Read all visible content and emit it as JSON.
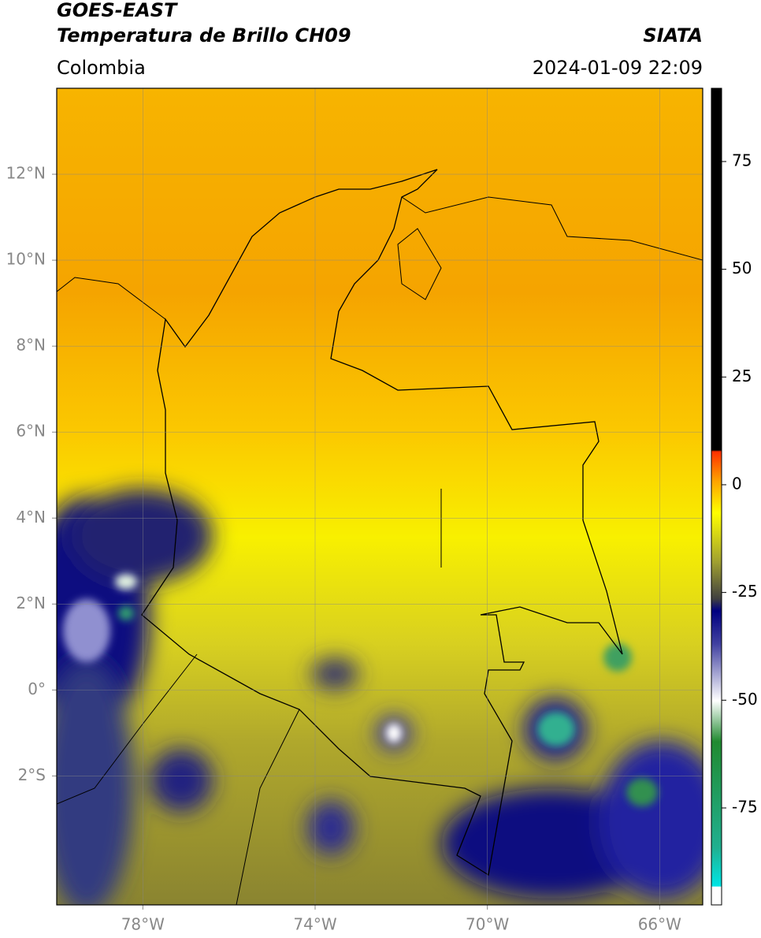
{
  "header": {
    "title": "GOES-EAST",
    "subtitle": "Temperatura de Brillo CH09",
    "region": "Colombia",
    "source": "SIATA",
    "datetime": "2024-01-09 22:09"
  },
  "map": {
    "lonlim": [
      -80,
      -65
    ],
    "latlim": [
      -5,
      14
    ],
    "lon_ticks": [
      {
        "value": -78,
        "label": "78°W"
      },
      {
        "value": -74,
        "label": "74°W"
      },
      {
        "value": -70,
        "label": "70°W"
      },
      {
        "value": -66,
        "label": "66°W"
      }
    ],
    "lat_ticks": [
      {
        "value": 12,
        "label": "12°N"
      },
      {
        "value": 10,
        "label": "10°N"
      },
      {
        "value": 8,
        "label": "8°N"
      },
      {
        "value": 6,
        "label": "6°N"
      },
      {
        "value": 4,
        "label": "4°N"
      },
      {
        "value": 2,
        "label": "2°N"
      },
      {
        "value": 0,
        "label": "0°"
      },
      {
        "value": -2,
        "label": "2°S"
      }
    ]
  },
  "colorbar": {
    "lim": [
      -97.5,
      92
    ],
    "ticks": [
      75,
      50,
      25,
      0,
      -25,
      -50,
      -75
    ]
  }
}
